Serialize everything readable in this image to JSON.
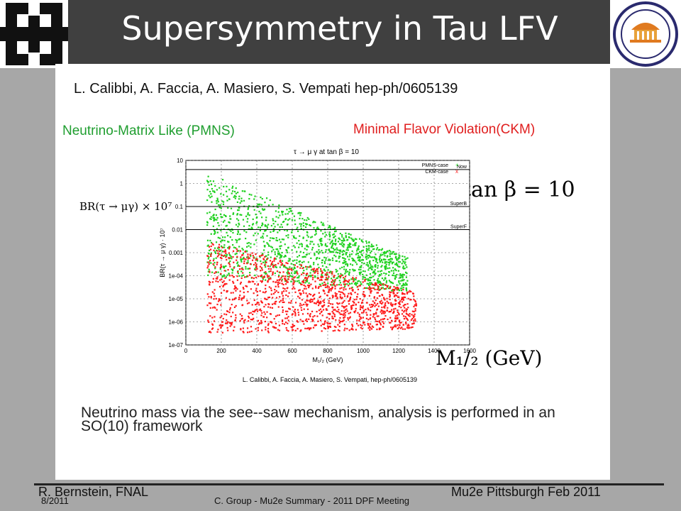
{
  "header": {
    "title": "Supersymmetry in Tau LFV",
    "colors": {
      "bar": "#404040",
      "title_text": "#ffffff"
    }
  },
  "logos": {
    "left": "fermilab-logo",
    "right": "university-of-virginia-seal"
  },
  "content": {
    "reference": "L. Calibbi, A. Faccia, A. Masiero, S. Vempati hep-ph/0605139",
    "label_pmns": "Neutrino-Matrix Like (PMNS)",
    "label_mfv": "Minimal Flavor Violation(CKM)",
    "tan_beta": "tan β = 10",
    "ylabel_big": "BR(τ → μγ) × 10⁷",
    "xlabel_big": "M₁/₂ (GeV)",
    "caption": "Neutrino mass via the see--saw mechanism, analysis is performed in an SO(10) framework",
    "colors": {
      "pmns": "#1f9e2f",
      "mfv": "#e01e1e"
    }
  },
  "chart_data": {
    "type": "scatter",
    "title": "τ → μ γ at tan β = 10",
    "xlabel": "M₁/₂ (GeV)",
    "ylabel": "BR(τ → μ γ) · 10⁷",
    "xlim": [
      0,
      1600
    ],
    "ylim": [
      1e-07,
      10
    ],
    "yscale": "log",
    "x_ticks": [
      "0",
      "200",
      "400",
      "600",
      "800",
      "1000",
      "1200",
      "1400",
      "1600"
    ],
    "y_ticks": [
      "10",
      "1",
      "0.1",
      "0.01",
      "0.001",
      "1e-04",
      "1e-05",
      "1e-06",
      "1e-07"
    ],
    "grid": true,
    "legend": [
      {
        "name": "PMNS-case",
        "color": "#1fd11f",
        "marker": "+"
      },
      {
        "name": "CKM-case",
        "color": "#ff1a1a",
        "marker": "x"
      }
    ],
    "legend_position": "top-right",
    "horizontal_lines": [
      {
        "label": "Now",
        "y": 4
      },
      {
        "label": "SuperB",
        "y": 0.1
      },
      {
        "label": "SuperF",
        "y": 0.01
      }
    ],
    "series": [
      {
        "name": "PMNS-case",
        "color": "#1fd11f",
        "x": [
          120,
          1250
        ],
        "y_upper": [
          3,
          0.0006
        ],
        "y_lower": [
          0.0001,
          2e-05
        ]
      },
      {
        "name": "CKM-case",
        "color": "#ff1a1a",
        "x": [
          120,
          1300
        ],
        "y_upper": [
          0.003,
          2e-05
        ],
        "y_lower": [
          3e-07,
          5e-07
        ]
      }
    ],
    "caption": "L. Calibbi, A. Faccia, A. Masiero, S. Vempati, hep-ph/0605139"
  },
  "footer": {
    "author": "R. Bernstein, FNAL",
    "event": "Mu2e   Pittsburgh Feb 2011",
    "date": "8/2011",
    "meeting": "C. Group - Mu2e Summary - 2011 DPF Meeting"
  }
}
